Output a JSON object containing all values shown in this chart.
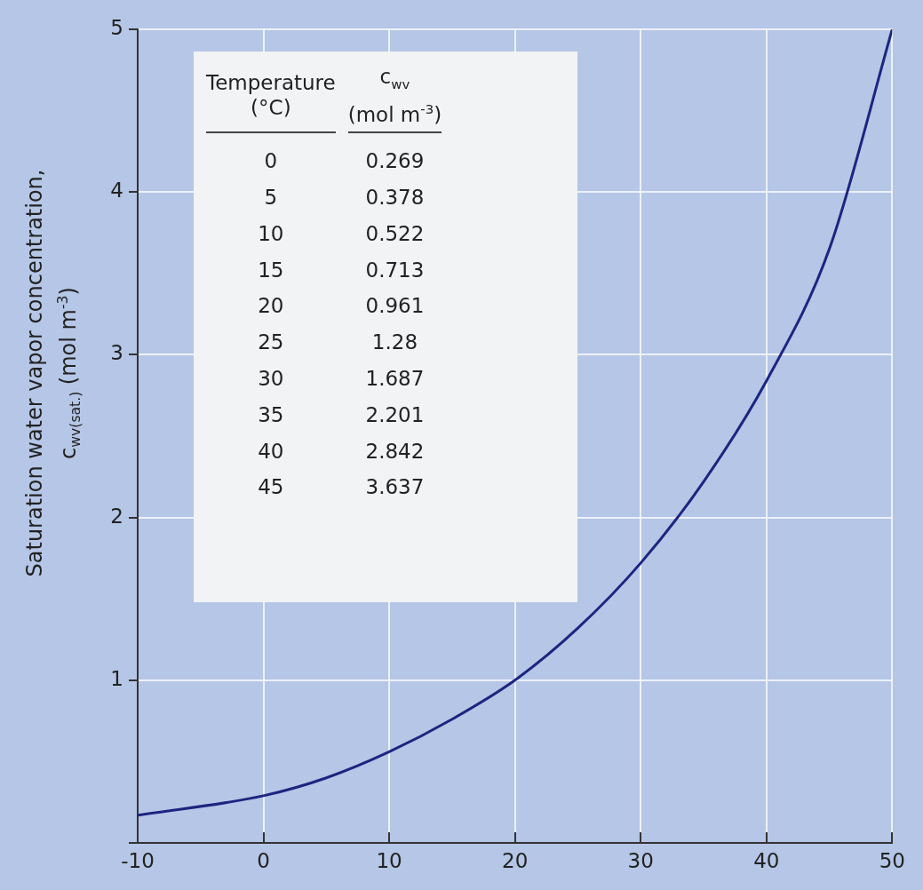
{
  "chart_data": {
    "type": "line",
    "ylabel": "Saturation water vapor concentration,\nc$_{wv(sat.)}$ (mol m$^{-3}$)",
    "annotations": [
      "Temperature\n(°C)",
      "c$_{wv}$\n(mol m$^{-3}$)",
      "0",
      "0.269",
      "5",
      "0.378",
      "10",
      "0.522",
      "15",
      "0.713",
      "20",
      "0.961",
      "25",
      "1.28",
      "30",
      "1.687",
      "35",
      "2.201",
      "40",
      "2.842",
      "45",
      "3.637"
    ],
    "x": [
      -10,
      0,
      5,
      10,
      15,
      20,
      25,
      30,
      35,
      40,
      45,
      50
    ],
    "series": [
      {
        "color": "#1c2580",
        "values": [
          0.17,
          0.29,
          0.4,
          0.56,
          0.76,
          1.0,
          1.32,
          1.72,
          2.22,
          2.84,
          3.65,
          5.0
        ]
      }
    ],
    "xlim": [
      -10,
      50
    ],
    "xticks": [
      -10,
      0,
      10,
      20,
      30,
      40,
      50
    ],
    "ylim": [
      0,
      5
    ],
    "yticks": [
      {
        "value": 0,
        "label": null
      },
      1,
      2,
      3,
      4,
      5
    ],
    "grid": true,
    "marker": "none",
    "line_style": "solid",
    "legend": false
  }
}
